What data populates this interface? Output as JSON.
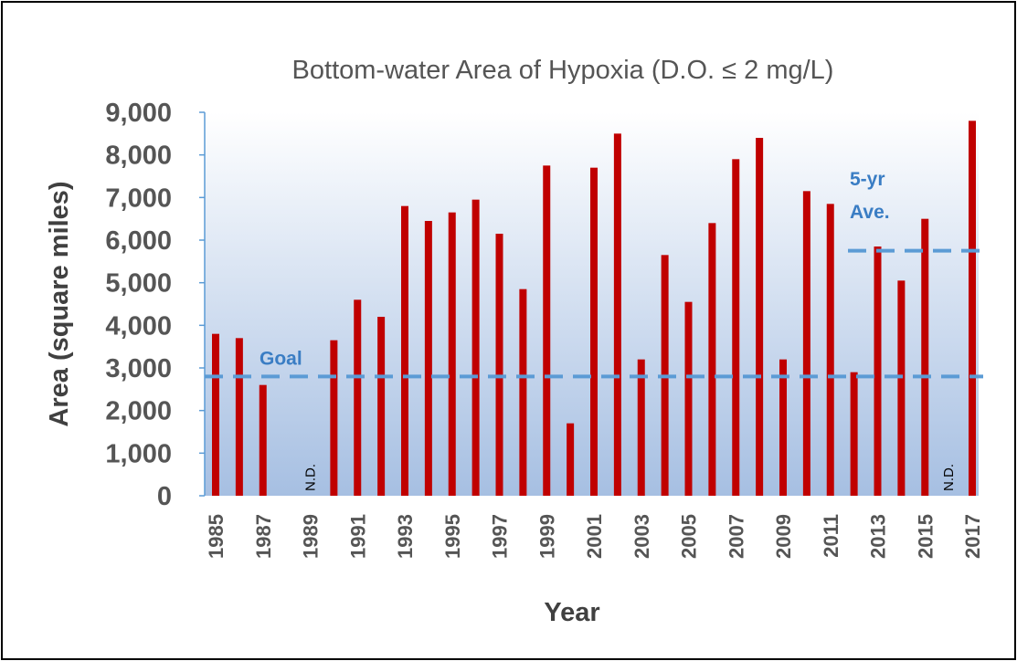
{
  "chart_data": {
    "type": "bar",
    "title": "Bottom-water Area of Hypoxia (D.O. ≤ 2 mg/L)",
    "xlabel": "Year",
    "ylabel": "Area (square miles)",
    "ylim": [
      0,
      9000
    ],
    "yticks": [
      "0",
      "1,000",
      "2,000",
      "3,000",
      "4,000",
      "5,000",
      "6,000",
      "7,000",
      "8,000",
      "9,000"
    ],
    "categories": [
      "1985",
      "1986",
      "1987",
      "1988",
      "1989",
      "1990",
      "1991",
      "1992",
      "1993",
      "1994",
      "1995",
      "1996",
      "1997",
      "1998",
      "1999",
      "2000",
      "2001",
      "2002",
      "2003",
      "2004",
      "2005",
      "2006",
      "2007",
      "2008",
      "2009",
      "2010",
      "2011",
      "2012",
      "2013",
      "2014",
      "2015",
      "2016",
      "2017"
    ],
    "x_tick_labels": [
      "1985",
      "1987",
      "1989",
      "1991",
      "1993",
      "1995",
      "1997",
      "1999",
      "2001",
      "2003",
      "2005",
      "2007",
      "2009",
      "2011",
      "2013",
      "2015",
      "2017"
    ],
    "values": [
      3800,
      3700,
      2600,
      0,
      null,
      3650,
      4600,
      4200,
      6800,
      6450,
      6650,
      6950,
      6150,
      4850,
      7750,
      1700,
      7700,
      8500,
      3200,
      5650,
      4550,
      6400,
      7900,
      8400,
      3200,
      7150,
      6850,
      2900,
      5850,
      5050,
      6500,
      null,
      8800
    ],
    "no_data_label": "N.D.",
    "no_data_years": [
      "1989",
      "2016"
    ],
    "bar_color": "#c00000",
    "reference_lines": [
      {
        "label": "Goal",
        "value": 2800,
        "color": "#5b9bd5"
      },
      {
        "label": "5-yr Ave.",
        "value": 5750,
        "color": "#5b9bd5"
      }
    ],
    "grid": false,
    "legend": "none",
    "background": "gradient white to light blue"
  }
}
